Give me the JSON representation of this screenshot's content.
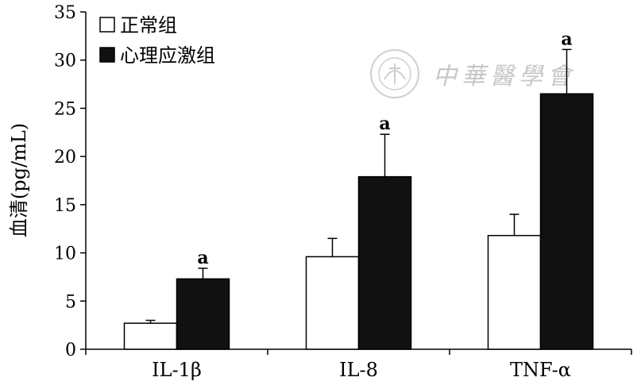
{
  "chart_data": {
    "type": "bar",
    "categories": [
      "IL-1β",
      "IL-8",
      "TNF-α"
    ],
    "series": [
      {
        "name": "正常组",
        "values": [
          2.7,
          9.6,
          11.8
        ],
        "errors": [
          0.3,
          1.9,
          2.2
        ],
        "fill": "#ffffff"
      },
      {
        "name": "心理应激组",
        "values": [
          7.3,
          17.9,
          26.5
        ],
        "errors": [
          1.1,
          4.4,
          4.6
        ],
        "fill": "#111111"
      }
    ],
    "significance": [
      "a",
      "a",
      "a"
    ],
    "ylabel": "血清(pg/mL)",
    "ylim": [
      0,
      35
    ],
    "yticks": [
      0,
      5,
      10,
      15,
      20,
      25,
      30,
      35
    ],
    "grid": false,
    "legend_position": "top-left"
  },
  "watermark": {
    "text": "中華醫學會"
  }
}
